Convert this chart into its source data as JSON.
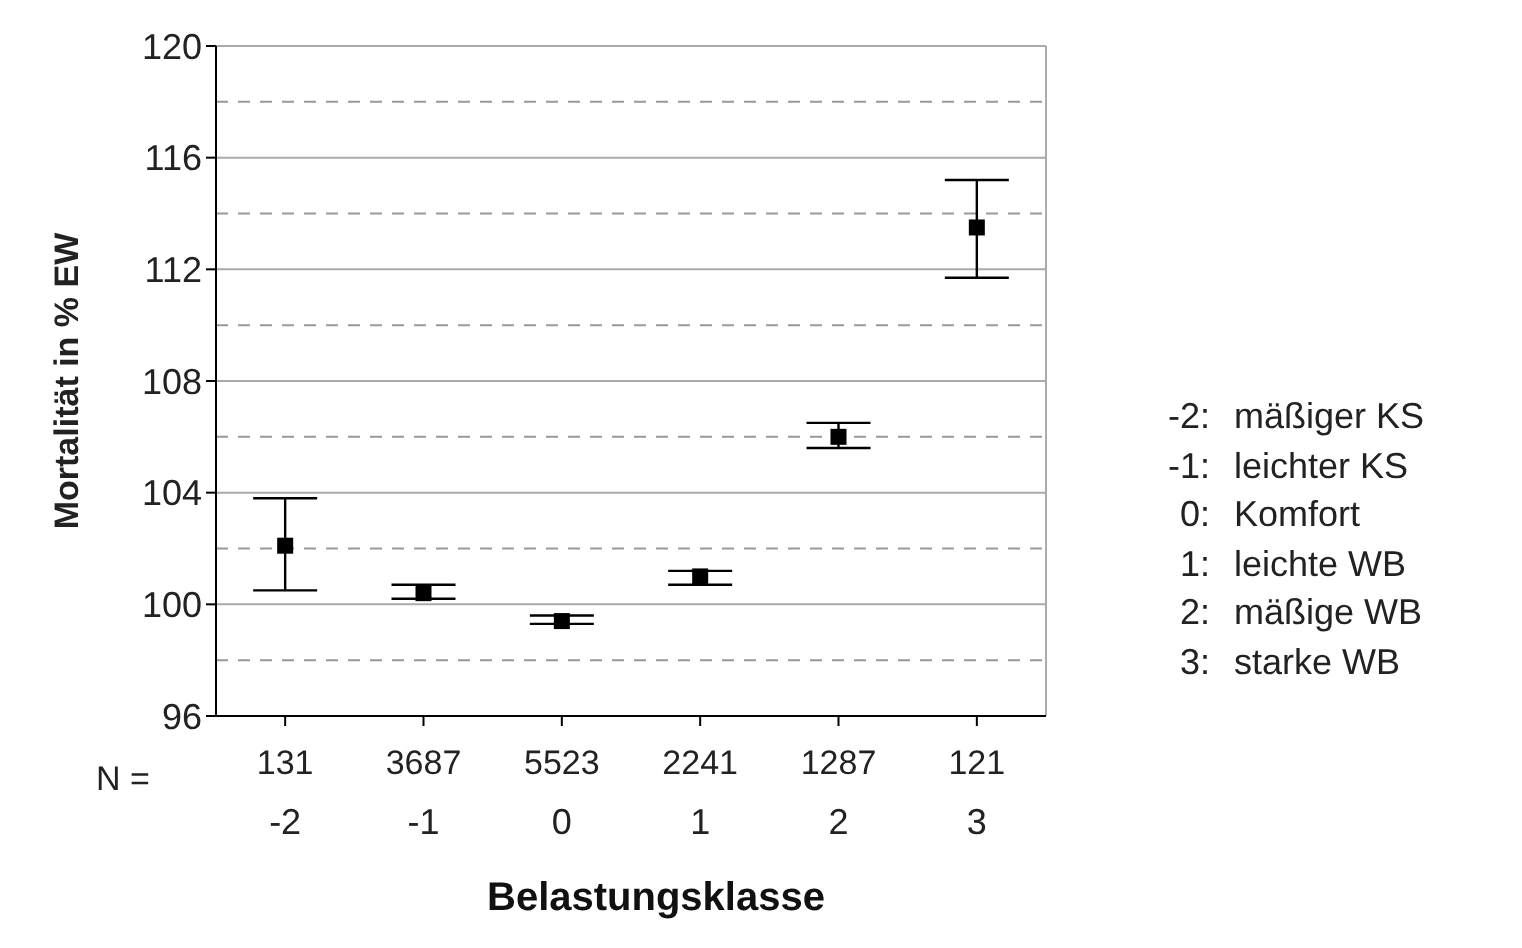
{
  "chart_data": {
    "type": "scatter",
    "xlabel": "Belastungsklasse",
    "ylabel": "Mortalität in % EW",
    "categories": [
      "-2",
      "-1",
      "0",
      "1",
      "2",
      "3"
    ],
    "values": [
      102.1,
      100.4,
      99.4,
      101.0,
      106.0,
      113.5
    ],
    "errors": [
      [
        100.5,
        103.8
      ],
      [
        100.2,
        100.7
      ],
      [
        99.3,
        99.6
      ],
      [
        100.7,
        101.2
      ],
      [
        105.6,
        106.5
      ],
      [
        111.7,
        115.2
      ]
    ],
    "color": "#000000",
    "marker": "square",
    "ylim": [
      96,
      120
    ],
    "yticks": [
      96,
      100,
      104,
      108,
      112,
      116,
      120
    ],
    "grid": "y",
    "ref_lines": [
      {
        "axis": "y",
        "value": 98,
        "color": "#999999",
        "line_style": "dashed"
      },
      {
        "axis": "y",
        "value": 102,
        "color": "#999999",
        "line_style": "dashed"
      },
      {
        "axis": "y",
        "value": 106,
        "color": "#999999",
        "line_style": "dashed"
      },
      {
        "axis": "y",
        "value": 110,
        "color": "#999999",
        "line_style": "dashed"
      },
      {
        "axis": "y",
        "value": 114,
        "color": "#999999",
        "line_style": "dashed"
      },
      {
        "axis": "y",
        "value": 118,
        "color": "#999999",
        "line_style": "dashed"
      }
    ],
    "annotations": [
      "N =",
      "131",
      "3687",
      "5523",
      "2241",
      "1287",
      "121",
      "-2: mäßiger KS",
      "-1: leichter KS",
      "0: Komfort",
      "1: leichte WB",
      "2: mäßige WB",
      "3: starke WB"
    ]
  }
}
